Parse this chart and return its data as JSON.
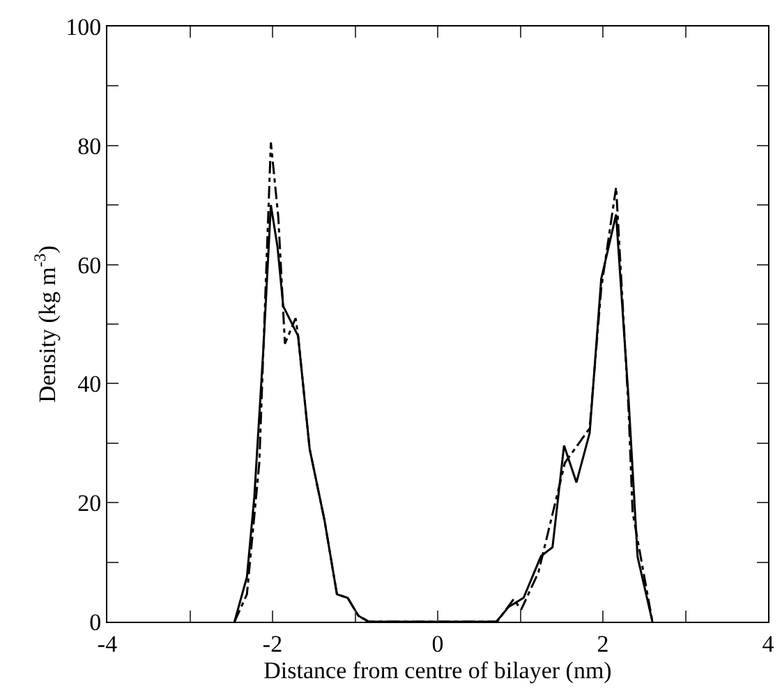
{
  "chart_data": {
    "type": "line",
    "xlabel": "Distance from centre of bilayer (nm)",
    "ylabel": "Density (kg m$^{-3}$)",
    "xlim": [
      -4,
      4
    ],
    "xticks": [
      -4,
      -2,
      0,
      2,
      4,
      {
        "value": -3,
        "label": null
      },
      {
        "value": -1,
        "label": null
      },
      {
        "value": 1,
        "label": null
      },
      {
        "value": 3,
        "label": null
      }
    ],
    "ylim": [
      0,
      100
    ],
    "yticks": [
      0,
      20,
      40,
      60,
      80,
      100,
      {
        "value": 10,
        "label": null
      },
      {
        "value": 30,
        "label": null
      },
      {
        "value": 50,
        "label": null
      },
      {
        "value": 70,
        "label": null
      },
      {
        "value": 90,
        "label": null
      }
    ],
    "marker": "none",
    "series": [
      {
        "color": "#000000",
        "line_style": "solid",
        "x": [
          -2.46,
          -2.31,
          -2.22,
          -2.11,
          -2.02,
          -1.94,
          -1.87,
          -1.69,
          -1.55,
          -1.37,
          -1.22,
          -1.09,
          -0.96,
          -0.84,
          0.71,
          0.86,
          1.04,
          1.25,
          1.39,
          1.53,
          1.68,
          1.84,
          1.98,
          2.16,
          2.31,
          2.42,
          2.6
        ],
        "values": [
          0,
          7.5,
          21,
          46,
          70,
          63,
          53,
          48,
          29,
          17,
          4.6,
          4,
          1,
          0,
          0,
          2.5,
          4,
          11,
          12.5,
          29.6,
          23.4,
          31.7,
          57.6,
          68.4,
          37.6,
          10.9,
          0
        ]
      },
      {
        "color": "#000000",
        "line_style": "dashed",
        "x": [
          -2.46,
          -2.31,
          -2.16,
          -2.02,
          -1.93,
          -1.85,
          -1.72,
          -1.69,
          -1.55,
          -1.37,
          -1.22,
          -1.09,
          -0.96,
          -0.83,
          0.72,
          0.92,
          1.01,
          1.22,
          1.54,
          1.84,
          1.98,
          2.16,
          2.31,
          2.36,
          2.6
        ],
        "values": [
          0,
          4.6,
          26.7,
          80.5,
          68,
          46.7,
          51,
          48,
          29,
          17,
          4.6,
          4,
          1,
          0,
          0,
          3.8,
          2,
          8.3,
          26.7,
          32.5,
          56,
          73,
          36,
          18.4,
          0
        ]
      }
    ]
  }
}
